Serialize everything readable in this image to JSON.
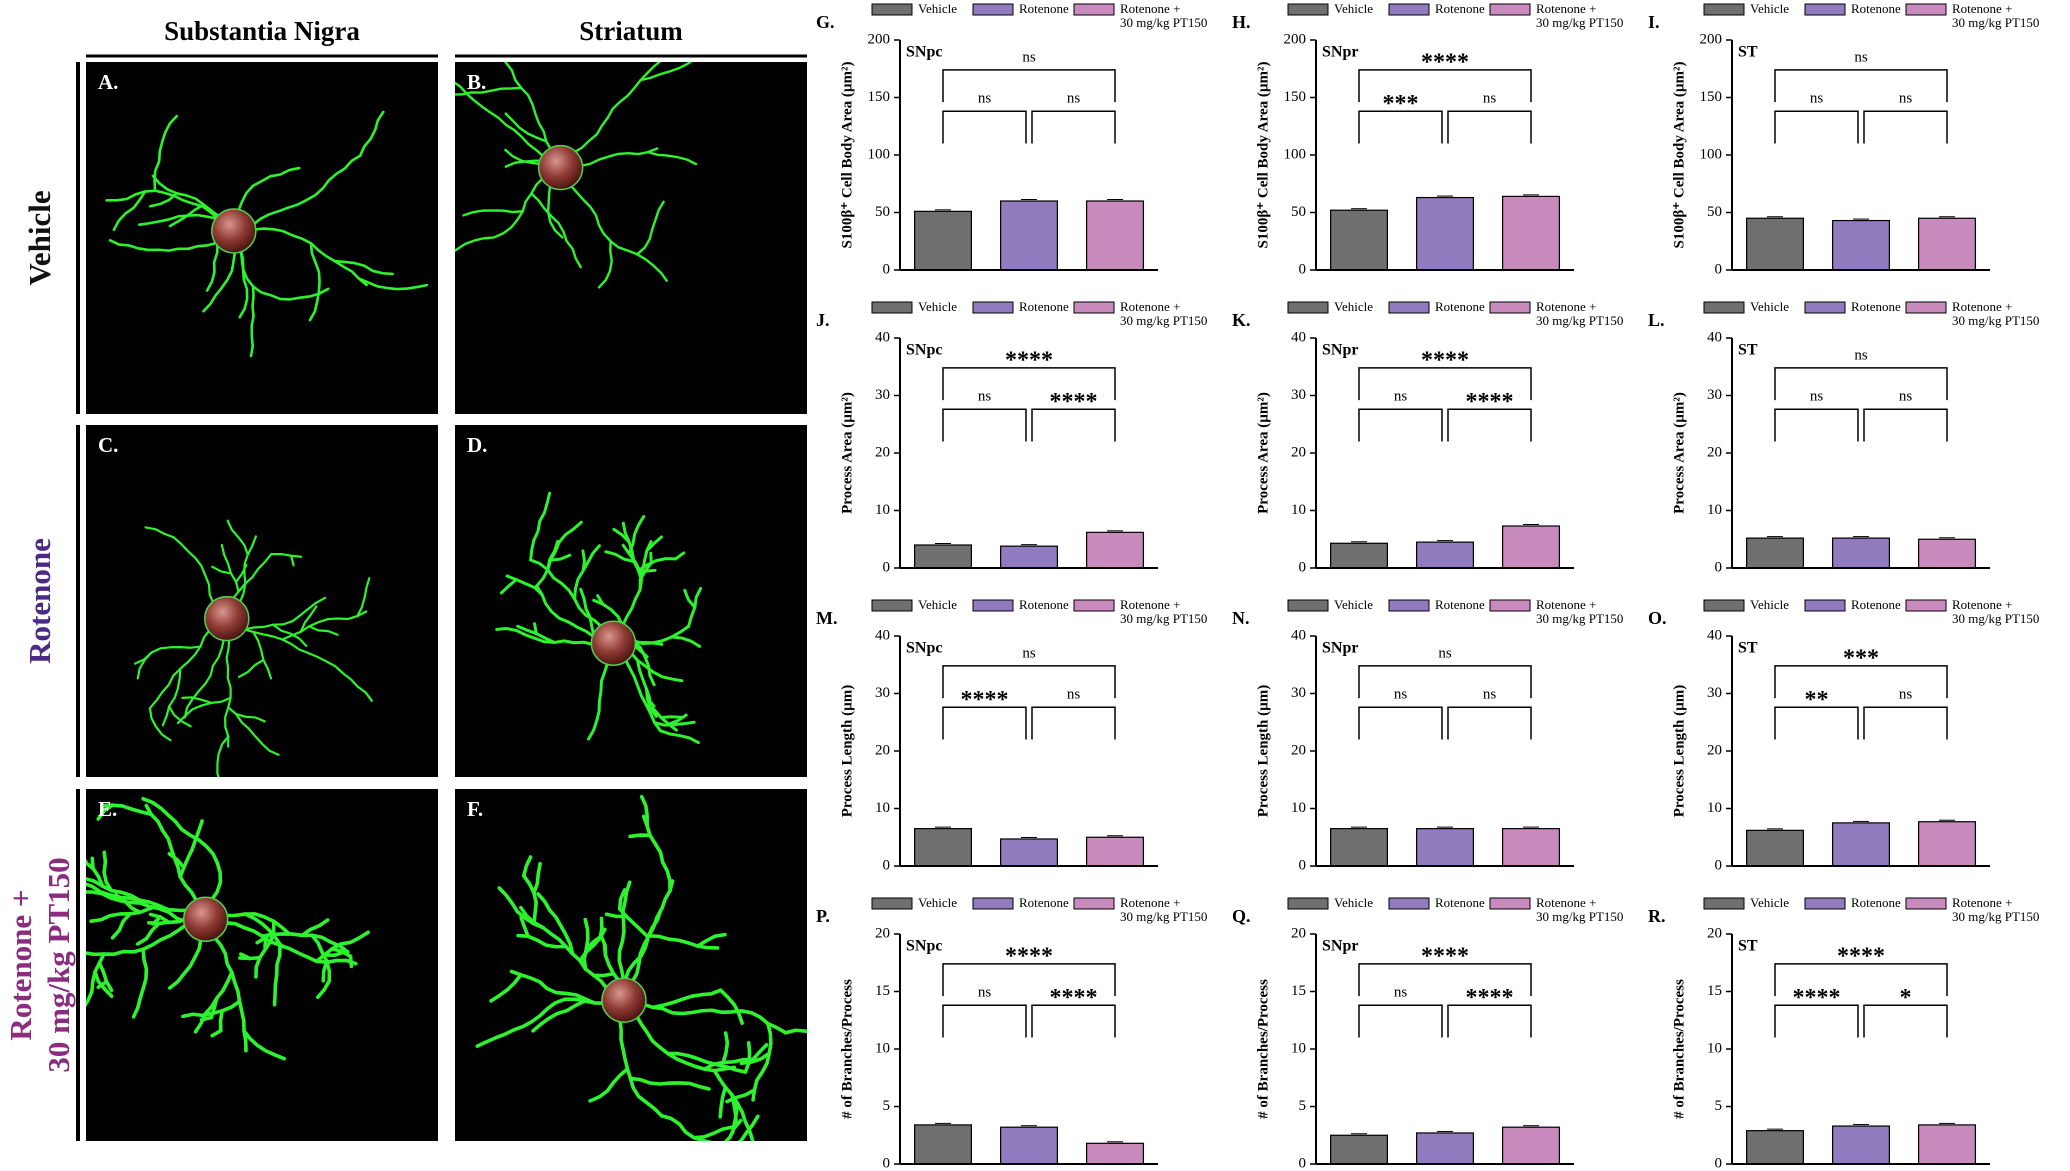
{
  "figure": {
    "columns": [
      "Substantia Nigra",
      "Striatum"
    ],
    "rows": [
      "Vehicle",
      "Rotenone",
      "Rotenone +\n30 mg/kg PT150"
    ],
    "row_colors": [
      "#111111",
      "#4b2a85",
      "#8b2c80"
    ],
    "panels": [
      "A.",
      "B.",
      "C.",
      "D.",
      "E.",
      "F."
    ]
  },
  "chart_data": [
    {
      "type": "bar",
      "panel": "G.",
      "region": "SNpc",
      "ylabel": "S100β⁺ Cell Body Area (µm²)",
      "categories": [
        "Vehicle",
        "Rotenone",
        "Rotenone +\n30 mg/kg PT150"
      ],
      "colors": [
        "#6f6f6f",
        "#8f7bbd",
        "#c98bbe"
      ],
      "values": [
        51,
        60,
        60
      ],
      "ylim": [
        0,
        200
      ],
      "yticks": [
        0,
        50,
        100,
        150,
        200
      ],
      "comparisons": [
        {
          "groups": [
            0,
            1
          ],
          "label": "ns"
        },
        {
          "groups": [
            1,
            2
          ],
          "label": "ns"
        },
        {
          "groups": [
            0,
            2
          ],
          "label": "ns"
        }
      ]
    },
    {
      "type": "bar",
      "panel": "H.",
      "region": "SNpr",
      "ylabel": "S100β⁺ Cell Body Area (µm²)",
      "categories": [
        "Vehicle",
        "Rotenone",
        "Rotenone +\n30 mg/kg PT150"
      ],
      "colors": [
        "#6f6f6f",
        "#8f7bbd",
        "#c98bbe"
      ],
      "values": [
        52,
        63,
        64
      ],
      "ylim": [
        0,
        200
      ],
      "yticks": [
        0,
        50,
        100,
        150,
        200
      ],
      "comparisons": [
        {
          "groups": [
            0,
            1
          ],
          "label": "***"
        },
        {
          "groups": [
            1,
            2
          ],
          "label": "ns"
        },
        {
          "groups": [
            0,
            2
          ],
          "label": "****"
        }
      ]
    },
    {
      "type": "bar",
      "panel": "I.",
      "region": "ST",
      "ylabel": "S100β⁺ Cell Body Area (µm²)",
      "categories": [
        "Vehicle",
        "Rotenone",
        "Rotenone +\n30 mg/kg PT150"
      ],
      "colors": [
        "#6f6f6f",
        "#8f7bbd",
        "#c98bbe"
      ],
      "values": [
        45,
        43,
        45
      ],
      "ylim": [
        0,
        200
      ],
      "yticks": [
        0,
        50,
        100,
        150,
        200
      ],
      "comparisons": [
        {
          "groups": [
            0,
            1
          ],
          "label": "ns"
        },
        {
          "groups": [
            1,
            2
          ],
          "label": "ns"
        },
        {
          "groups": [
            0,
            2
          ],
          "label": "ns"
        }
      ]
    },
    {
      "type": "bar",
      "panel": "J.",
      "region": "SNpc",
      "ylabel": "Process Area (µm²)",
      "categories": [
        "Vehicle",
        "Rotenone",
        "Rotenone +\n30 mg/kg PT150"
      ],
      "colors": [
        "#6f6f6f",
        "#8f7bbd",
        "#c98bbe"
      ],
      "values": [
        4,
        3.8,
        6.2
      ],
      "ylim": [
        0,
        40
      ],
      "yticks": [
        0,
        10,
        20,
        30,
        40
      ],
      "comparisons": [
        {
          "groups": [
            0,
            1
          ],
          "label": "ns"
        },
        {
          "groups": [
            1,
            2
          ],
          "label": "****"
        },
        {
          "groups": [
            0,
            2
          ],
          "label": "****"
        }
      ]
    },
    {
      "type": "bar",
      "panel": "K.",
      "region": "SNpr",
      "ylabel": "Process Area (µm²)",
      "categories": [
        "Vehicle",
        "Rotenone",
        "Rotenone +\n30 mg/kg PT150"
      ],
      "colors": [
        "#6f6f6f",
        "#8f7bbd",
        "#c98bbe"
      ],
      "values": [
        4.3,
        4.5,
        7.3
      ],
      "ylim": [
        0,
        40
      ],
      "yticks": [
        0,
        10,
        20,
        30,
        40
      ],
      "comparisons": [
        {
          "groups": [
            0,
            1
          ],
          "label": "ns"
        },
        {
          "groups": [
            1,
            2
          ],
          "label": "****"
        },
        {
          "groups": [
            0,
            2
          ],
          "label": "****"
        }
      ]
    },
    {
      "type": "bar",
      "panel": "L.",
      "region": "ST",
      "ylabel": "Process Area (µm²)",
      "categories": [
        "Vehicle",
        "Rotenone",
        "Rotenone +\n30 mg/kg PT150"
      ],
      "colors": [
        "#6f6f6f",
        "#8f7bbd",
        "#c98bbe"
      ],
      "values": [
        5.2,
        5.2,
        5
      ],
      "ylim": [
        0,
        40
      ],
      "yticks": [
        0,
        10,
        20,
        30,
        40
      ],
      "comparisons": [
        {
          "groups": [
            0,
            1
          ],
          "label": "ns"
        },
        {
          "groups": [
            1,
            2
          ],
          "label": "ns"
        },
        {
          "groups": [
            0,
            2
          ],
          "label": "ns"
        }
      ]
    },
    {
      "type": "bar",
      "panel": "M.",
      "region": "SNpc",
      "ylabel": "Process Length (µm)",
      "categories": [
        "Vehicle",
        "Rotenone",
        "Rotenone +\n30 mg/kg PT150"
      ],
      "colors": [
        "#6f6f6f",
        "#8f7bbd",
        "#c98bbe"
      ],
      "values": [
        6.5,
        4.7,
        5
      ],
      "ylim": [
        0,
        40
      ],
      "yticks": [
        0,
        10,
        20,
        30,
        40
      ],
      "comparisons": [
        {
          "groups": [
            0,
            1
          ],
          "label": "****"
        },
        {
          "groups": [
            1,
            2
          ],
          "label": "ns"
        },
        {
          "groups": [
            0,
            2
          ],
          "label": "ns"
        }
      ]
    },
    {
      "type": "bar",
      "panel": "N.",
      "region": "SNpr",
      "ylabel": "Process Length (µm)",
      "categories": [
        "Vehicle",
        "Rotenone",
        "Rotenone +\n30 mg/kg PT150"
      ],
      "colors": [
        "#6f6f6f",
        "#8f7bbd",
        "#c98bbe"
      ],
      "values": [
        6.5,
        6.5,
        6.5
      ],
      "ylim": [
        0,
        40
      ],
      "yticks": [
        0,
        10,
        20,
        30,
        40
      ],
      "comparisons": [
        {
          "groups": [
            0,
            1
          ],
          "label": "ns"
        },
        {
          "groups": [
            1,
            2
          ],
          "label": "ns"
        },
        {
          "groups": [
            0,
            2
          ],
          "label": "ns"
        }
      ]
    },
    {
      "type": "bar",
      "panel": "O.",
      "region": "ST",
      "ylabel": "Process Length (µm)",
      "categories": [
        "Vehicle",
        "Rotenone",
        "Rotenone +\n30 mg/kg PT150"
      ],
      "colors": [
        "#6f6f6f",
        "#8f7bbd",
        "#c98bbe"
      ],
      "values": [
        6.2,
        7.5,
        7.7
      ],
      "ylim": [
        0,
        40
      ],
      "yticks": [
        0,
        10,
        20,
        30,
        40
      ],
      "comparisons": [
        {
          "groups": [
            0,
            1
          ],
          "label": "**"
        },
        {
          "groups": [
            1,
            2
          ],
          "label": "ns"
        },
        {
          "groups": [
            0,
            2
          ],
          "label": "***"
        }
      ]
    },
    {
      "type": "bar",
      "panel": "P.",
      "region": "SNpc",
      "ylabel": "# of Branches/Process",
      "categories": [
        "Vehicle",
        "Rotenone",
        "Rotenone +\n30 mg/kg PT150"
      ],
      "colors": [
        "#6f6f6f",
        "#8f7bbd",
        "#c98bbe"
      ],
      "values": [
        3.4,
        3.2,
        1.8
      ],
      "ylim": [
        0,
        20
      ],
      "yticks": [
        0,
        5,
        10,
        15,
        20
      ],
      "comparisons": [
        {
          "groups": [
            0,
            1
          ],
          "label": "ns"
        },
        {
          "groups": [
            1,
            2
          ],
          "label": "****"
        },
        {
          "groups": [
            0,
            2
          ],
          "label": "****"
        }
      ]
    },
    {
      "type": "bar",
      "panel": "Q.",
      "region": "SNpr",
      "ylabel": "# of Branches/Process",
      "categories": [
        "Vehicle",
        "Rotenone",
        "Rotenone +\n30 mg/kg PT150"
      ],
      "colors": [
        "#6f6f6f",
        "#8f7bbd",
        "#c98bbe"
      ],
      "values": [
        2.5,
        2.7,
        3.2
      ],
      "ylim": [
        0,
        20
      ],
      "yticks": [
        0,
        5,
        10,
        15,
        20
      ],
      "comparisons": [
        {
          "groups": [
            0,
            1
          ],
          "label": "ns"
        },
        {
          "groups": [
            1,
            2
          ],
          "label": "****"
        },
        {
          "groups": [
            0,
            2
          ],
          "label": "****"
        }
      ]
    },
    {
      "type": "bar",
      "panel": "R.",
      "region": "ST",
      "ylabel": "# of Branches/Process",
      "categories": [
        "Vehicle",
        "Rotenone",
        "Rotenone +\n30 mg/kg PT150"
      ],
      "colors": [
        "#6f6f6f",
        "#8f7bbd",
        "#c98bbe"
      ],
      "values": [
        2.9,
        3.3,
        3.4
      ],
      "ylim": [
        0,
        20
      ],
      "yticks": [
        0,
        5,
        10,
        15,
        20
      ],
      "comparisons": [
        {
          "groups": [
            0,
            1
          ],
          "label": "****"
        },
        {
          "groups": [
            1,
            2
          ],
          "label": "*"
        },
        {
          "groups": [
            0,
            2
          ],
          "label": "****"
        }
      ]
    }
  ]
}
